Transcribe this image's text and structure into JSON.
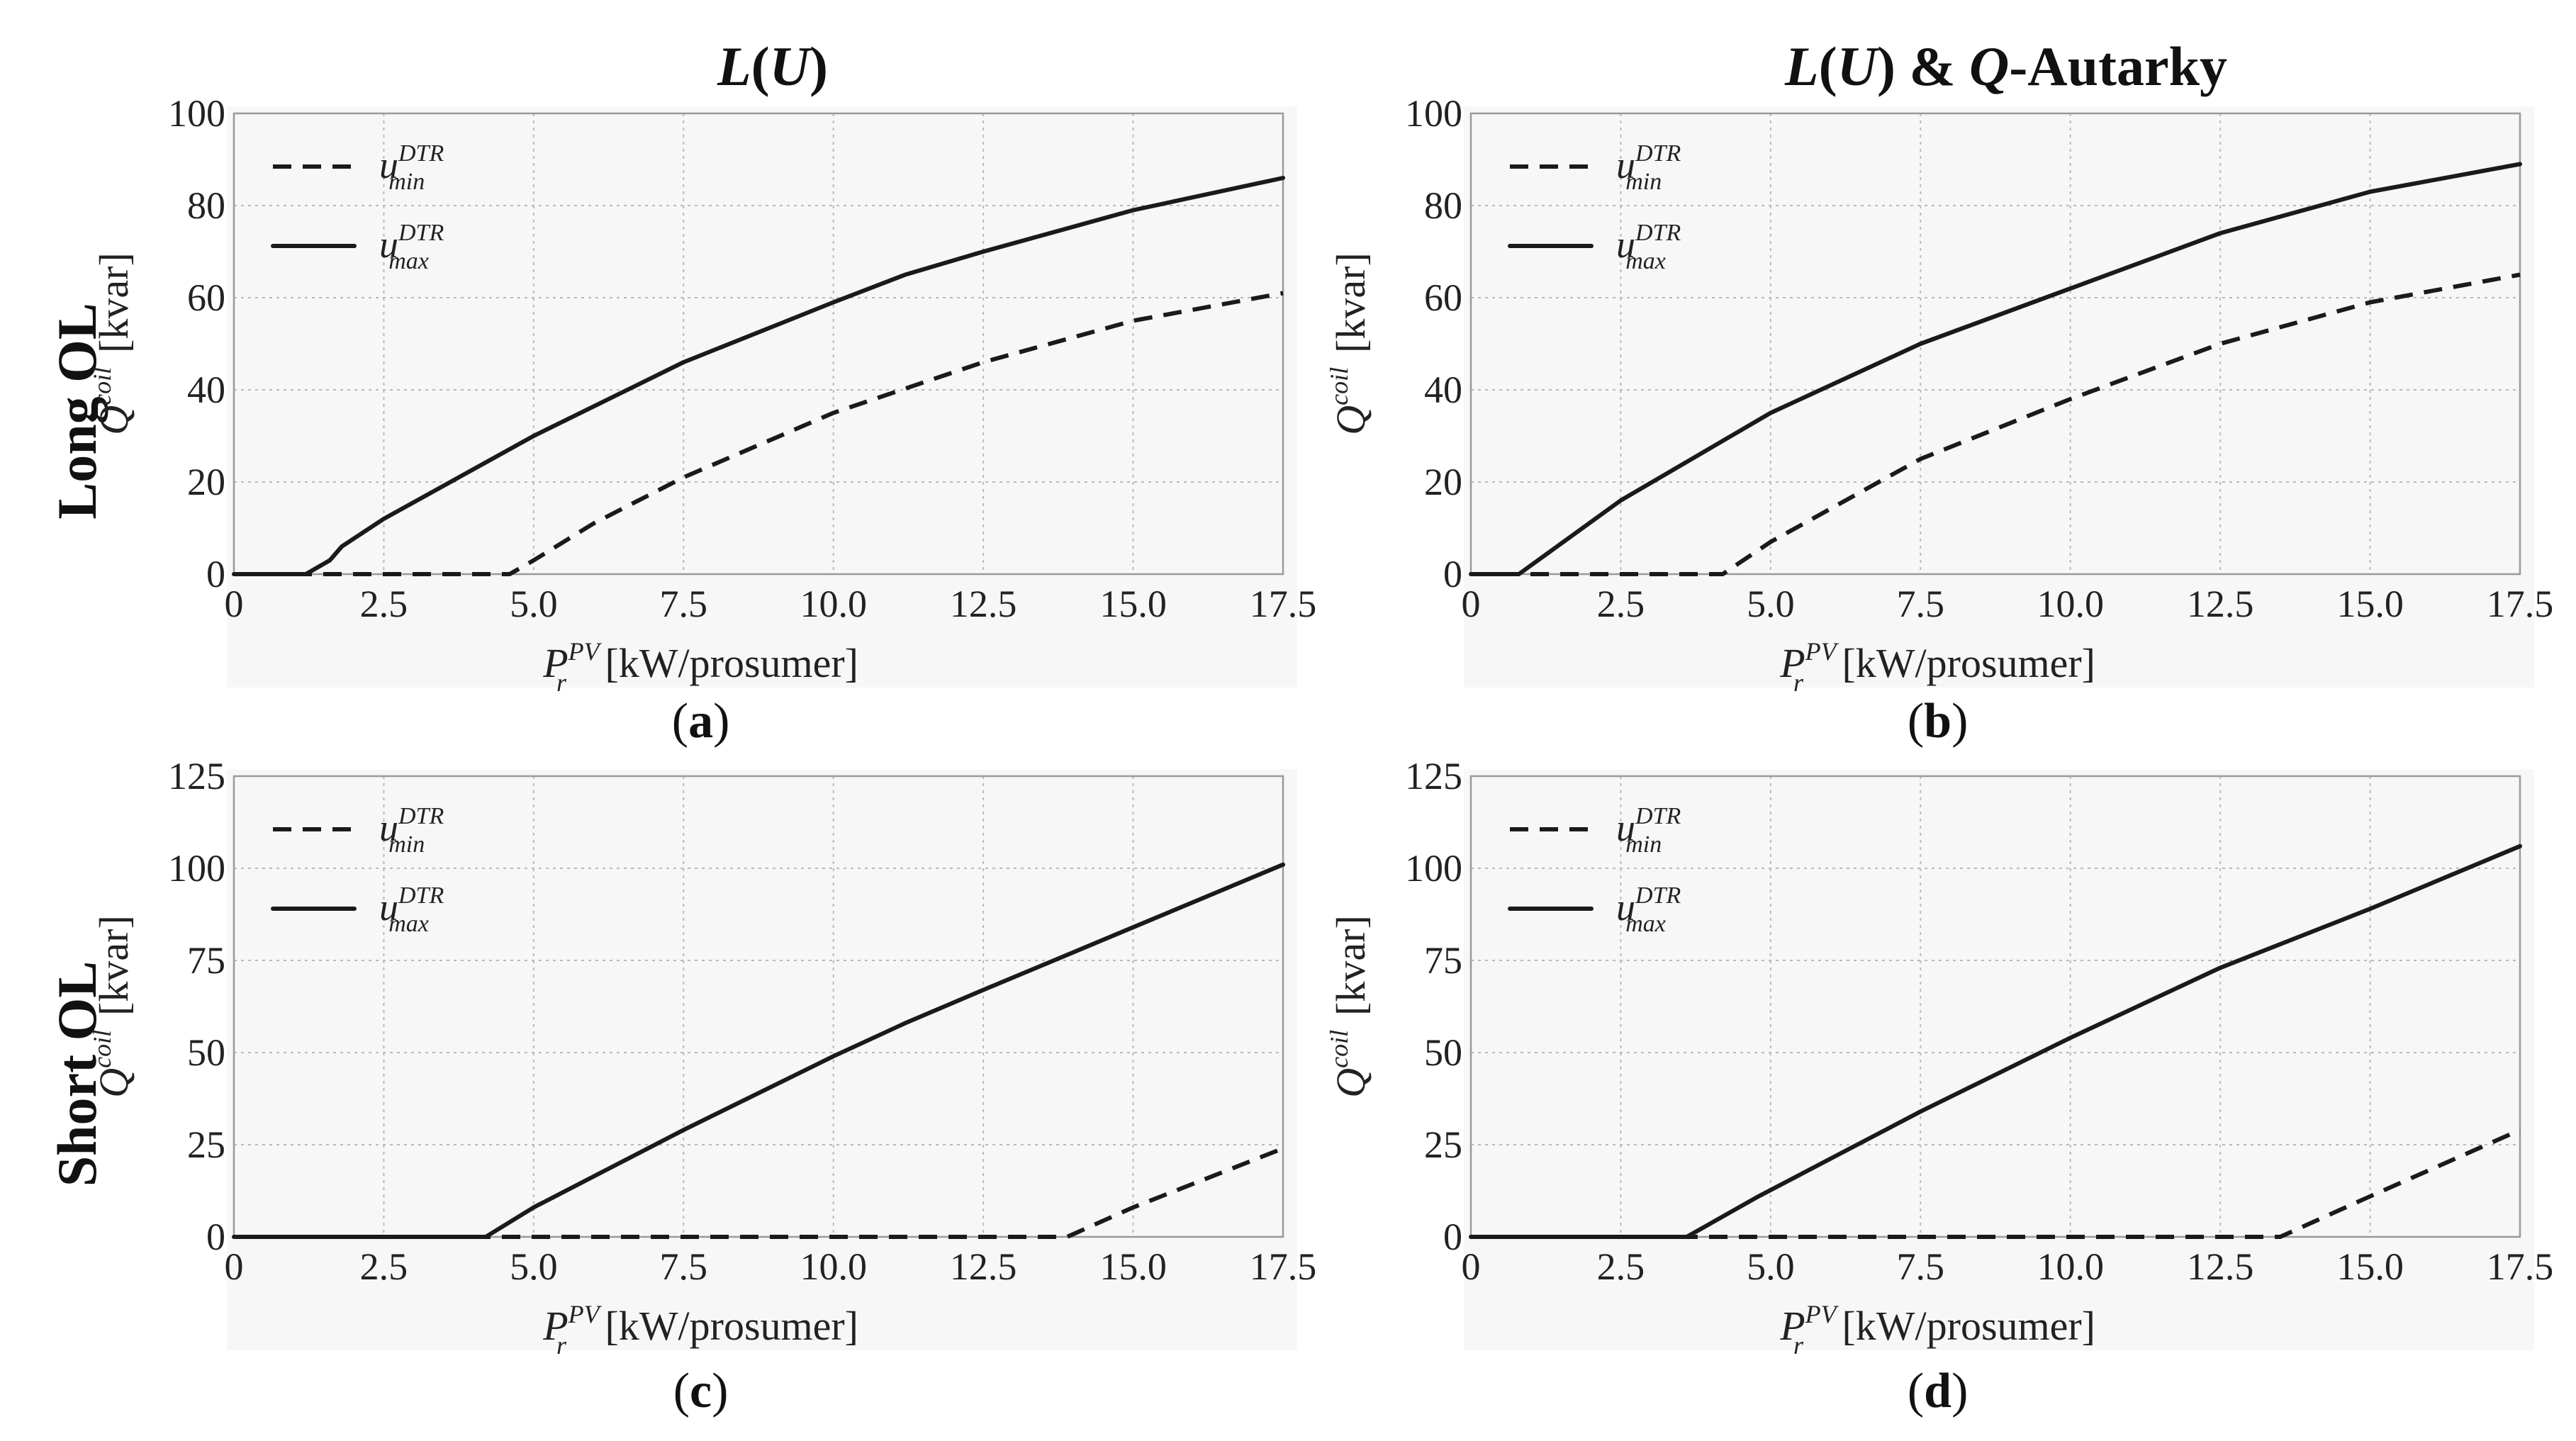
{
  "column_titles": [
    {
      "text": "L(U)"
    },
    {
      "text": "L(U) & Q-Autarky"
    }
  ],
  "row_titles": [
    "Long OL",
    "Short OL"
  ],
  "chart_data": [
    {
      "type": "line",
      "panel_label": "(a)",
      "panel_letter": "a",
      "row": "Long OL",
      "column": "L(U)",
      "xlabel": {
        "symbol": "P",
        "superscript": "PV",
        "subscript": "r",
        "unit": "[kW/prosumer]"
      },
      "ylabel": {
        "symbol": "Q",
        "superscript": "coil",
        "unit": "[kvar]"
      },
      "xlim": [
        0,
        17.5
      ],
      "ylim": [
        0,
        100
      ],
      "xticks": [
        "0",
        "2.5",
        "5.0",
        "7.5",
        "10.0",
        "12.5",
        "15.0",
        "17.5"
      ],
      "yticks": [
        "0",
        "20",
        "40",
        "60",
        "80",
        "100"
      ],
      "x_tick_values": [
        0,
        2.5,
        5,
        7.5,
        10,
        12.5,
        15,
        17.5
      ],
      "y_tick_values": [
        0,
        20,
        40,
        60,
        80,
        100
      ],
      "grid": true,
      "legend_position": "top-left",
      "series": [
        {
          "name": "u_min^DTR",
          "label_base": "u",
          "label_sup": "DTR",
          "label_sub": "min",
          "style": "dashed",
          "x": [
            0,
            2.5,
            4.6,
            5.0,
            6.0,
            7.5,
            10.0,
            12.5,
            15.0,
            17.5
          ],
          "y": [
            0,
            0,
            0,
            3,
            11,
            21,
            35,
            46,
            55,
            61
          ]
        },
        {
          "name": "u_max^DTR",
          "label_base": "u",
          "label_sup": "DTR",
          "label_sub": "max",
          "style": "solid",
          "x": [
            0,
            1.2,
            1.6,
            1.8,
            2.5,
            5.0,
            7.5,
            10.0,
            11.2,
            12.5,
            15.0,
            17.5
          ],
          "y": [
            0,
            0,
            3,
            6,
            12,
            30,
            46,
            59,
            65,
            70,
            79,
            86
          ]
        }
      ]
    },
    {
      "type": "line",
      "panel_label": "(b)",
      "panel_letter": "b",
      "row": "Long OL",
      "column": "L(U) & Q-Autarky",
      "xlabel": {
        "symbol": "P",
        "superscript": "PV",
        "subscript": "r",
        "unit": "[kW/prosumer]"
      },
      "ylabel": {
        "symbol": "Q",
        "superscript": "coil",
        "unit": "[kvar]"
      },
      "xlim": [
        0,
        17.5
      ],
      "ylim": [
        0,
        100
      ],
      "xticks": [
        "0",
        "2.5",
        "5.0",
        "7.5",
        "10.0",
        "12.5",
        "15.0",
        "17.5"
      ],
      "yticks": [
        "0",
        "20",
        "40",
        "60",
        "80",
        "100"
      ],
      "x_tick_values": [
        0,
        2.5,
        5,
        7.5,
        10,
        12.5,
        15,
        17.5
      ],
      "y_tick_values": [
        0,
        20,
        40,
        60,
        80,
        100
      ],
      "grid": true,
      "legend_position": "top-left",
      "series": [
        {
          "name": "u_min^DTR",
          "label_base": "u",
          "label_sup": "DTR",
          "label_sub": "min",
          "style": "dashed",
          "x": [
            0,
            3.5,
            4.2,
            5.0,
            7.5,
            10.0,
            12.5,
            15.0,
            17.5
          ],
          "y": [
            0,
            0,
            0,
            7,
            25,
            38,
            50,
            59,
            65
          ]
        },
        {
          "name": "u_max^DTR",
          "label_base": "u",
          "label_sup": "DTR",
          "label_sub": "max",
          "style": "solid",
          "x": [
            0,
            0.8,
            2.5,
            5.0,
            7.5,
            10.0,
            12.5,
            15.0,
            17.5
          ],
          "y": [
            0,
            0,
            16,
            35,
            50,
            62,
            74,
            83,
            89
          ]
        }
      ]
    },
    {
      "type": "line",
      "panel_label": "(c)",
      "panel_letter": "c",
      "row": "Short OL",
      "column": "L(U)",
      "xlabel": {
        "symbol": "P",
        "superscript": "PV",
        "subscript": "r",
        "unit": "[kW/prosumer]"
      },
      "ylabel": {
        "symbol": "Q",
        "superscript": "coil",
        "unit": "[kvar]"
      },
      "xlim": [
        0,
        17.5
      ],
      "ylim": [
        0,
        125
      ],
      "xticks": [
        "0",
        "2.5",
        "5.0",
        "7.5",
        "10.0",
        "12.5",
        "15.0",
        "17.5"
      ],
      "yticks": [
        "0",
        "25",
        "50",
        "75",
        "100",
        "125"
      ],
      "x_tick_values": [
        0,
        2.5,
        5,
        7.5,
        10,
        12.5,
        15,
        17.5
      ],
      "y_tick_values": [
        0,
        25,
        50,
        75,
        100,
        125
      ],
      "grid": true,
      "legend_position": "top-left",
      "series": [
        {
          "name": "u_min^DTR",
          "label_base": "u",
          "label_sup": "DTR",
          "label_sub": "min",
          "style": "dashed",
          "x": [
            0,
            13.9,
            15.0,
            17.5
          ],
          "y": [
            0,
            0,
            8,
            24
          ]
        },
        {
          "name": "u_max^DTR",
          "label_base": "u",
          "label_sup": "DTR",
          "label_sub": "max",
          "style": "solid",
          "x": [
            0,
            4.2,
            5.0,
            7.5,
            10.0,
            11.2,
            12.5,
            15.0,
            17.5
          ],
          "y": [
            0,
            0,
            8,
            29,
            49,
            58,
            67,
            84,
            101
          ]
        }
      ]
    },
    {
      "type": "line",
      "panel_label": "(d)",
      "panel_letter": "d",
      "row": "Short OL",
      "column": "L(U) & Q-Autarky",
      "xlabel": {
        "symbol": "P",
        "superscript": "PV",
        "subscript": "r",
        "unit": "[kW/prosumer]"
      },
      "ylabel": {
        "symbol": "Q",
        "superscript": "coil",
        "unit": "[kvar]"
      },
      "xlim": [
        0,
        17.5
      ],
      "ylim": [
        0,
        125
      ],
      "xticks": [
        "0",
        "2.5",
        "5.0",
        "7.5",
        "10.0",
        "12.5",
        "15.0",
        "17.5"
      ],
      "yticks": [
        "0",
        "25",
        "50",
        "75",
        "100",
        "125"
      ],
      "x_tick_values": [
        0,
        2.5,
        5,
        7.5,
        10,
        12.5,
        15,
        17.5
      ],
      "y_tick_values": [
        0,
        25,
        50,
        75,
        100,
        125
      ],
      "grid": true,
      "legend_position": "top-left",
      "series": [
        {
          "name": "u_min^DTR",
          "label_base": "u",
          "label_sup": "DTR",
          "label_sub": "min",
          "style": "dashed",
          "x": [
            0,
            13.5,
            15.0,
            17.5
          ],
          "y": [
            0,
            0,
            11,
            29
          ]
        },
        {
          "name": "u_max^DTR",
          "label_base": "u",
          "label_sup": "DTR",
          "label_sub": "max",
          "style": "solid",
          "x": [
            0,
            3.6,
            4.8,
            7.5,
            10.0,
            12.5,
            15.0,
            17.5
          ],
          "y": [
            0,
            0,
            11,
            34,
            54,
            73,
            89,
            106
          ]
        }
      ]
    }
  ]
}
